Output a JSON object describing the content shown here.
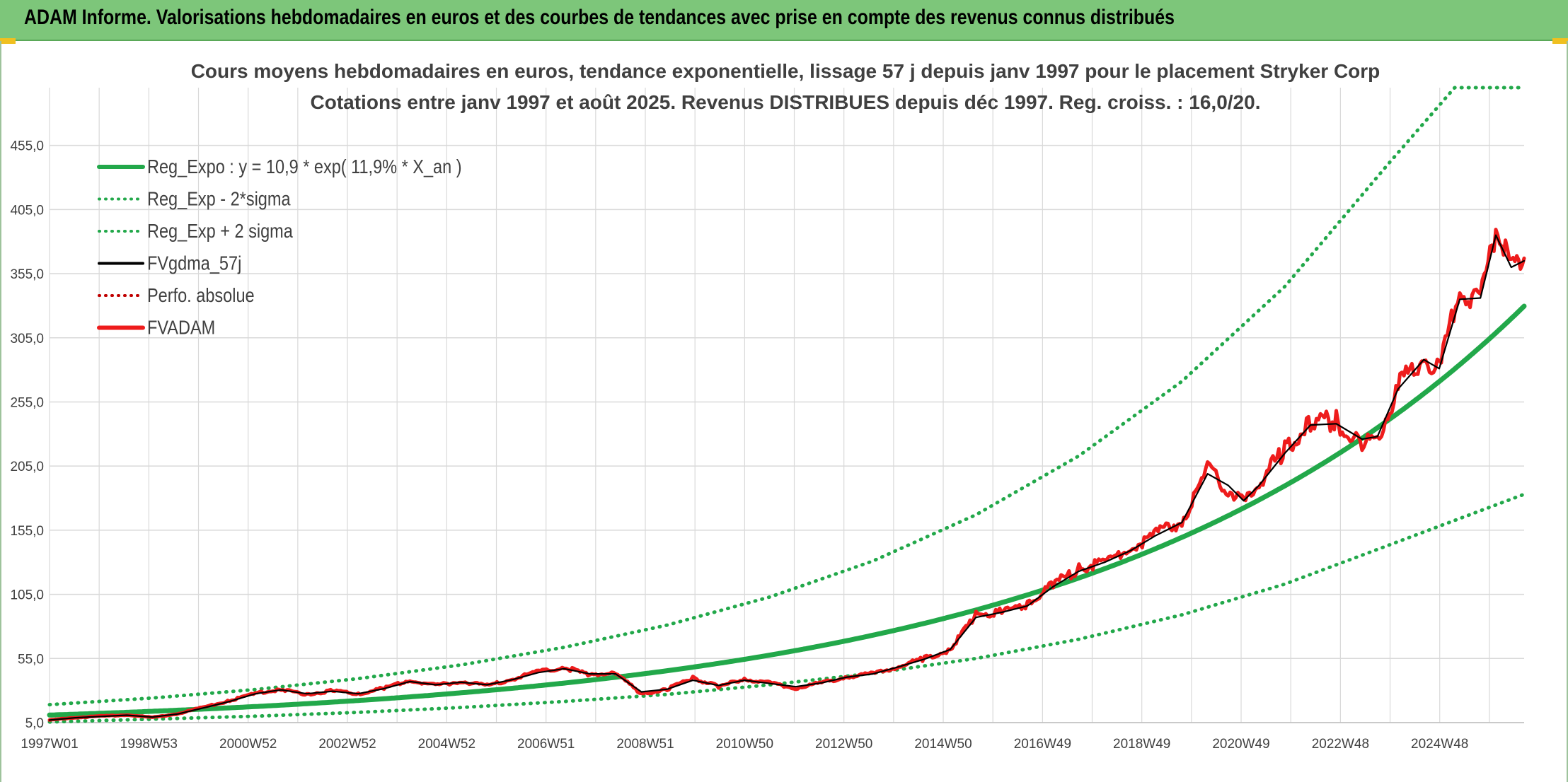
{
  "banner": {
    "title": "ADAM Informe. Valorisations hebdomadaires en euros et des courbes de tendances avec prise en compte des revenus connus distribués"
  },
  "colors": {
    "banner_bg": "#7dc67a",
    "reg_expo": "#22a84a",
    "sigma_bands": "#22a84a",
    "fvgdma": "#000000",
    "perfo": "#c00000",
    "fvadam": "#ee1c1c",
    "grid": "#d9d9d9"
  },
  "chart_data": {
    "type": "line",
    "title": "Cours moyens hebdomadaires en euros, tendance exponentielle, lissage 57 j depuis janv 1997 pour le placement Stryker Corp",
    "subtitle": "Cotations entre janv 1997 et août 2025. Revenus DISTRIBUES depuis déc 1997. Reg. croiss. : 16,0/20.",
    "x_tick_labels": [
      "1997W01",
      "1998W53",
      "2000W52",
      "2002W52",
      "2004W52",
      "2006W51",
      "2008W51",
      "2010W50",
      "2012W50",
      "2014W50",
      "2016W49",
      "2018W49",
      "2020W49",
      "2022W48",
      "2024W48"
    ],
    "x_range": [
      1997.0,
      2025.65
    ],
    "y_tick_labels": [
      "5,0",
      "55,0",
      "105,0",
      "155,0",
      "205,0",
      "255,0",
      "305,0",
      "355,0",
      "405,0",
      "455,0"
    ],
    "y_ticks": [
      5,
      55,
      105,
      155,
      205,
      255,
      305,
      355,
      405,
      455
    ],
    "ylim": [
      5,
      500
    ],
    "grid": true,
    "legend_position": "top-left",
    "legend": [
      {
        "key": "reg_expo",
        "label": "Reg_Expo : y = 10,9 * exp( 11,9% *  X_an )",
        "style": "solid-thick"
      },
      {
        "key": "reg_minus",
        "label": "Reg_Exp - 2*sigma",
        "style": "dotted"
      },
      {
        "key": "reg_plus",
        "label": "Reg_Exp + 2 sigma",
        "style": "dotted"
      },
      {
        "key": "fvgdma",
        "label": "FVgdma_57j",
        "style": "solid"
      },
      {
        "key": "perfo",
        "label": "Perfo. absolue",
        "style": "dotted"
      },
      {
        "key": "fvadam",
        "label": "FVADAM",
        "style": "solid-thick"
      }
    ],
    "series": [
      {
        "name": "Reg_Expo : y = 10,9 * exp( 11,9% *  X_an )",
        "x": [
          1997,
          1999,
          2001,
          2003,
          2005,
          2007,
          2009,
          2011,
          2013,
          2015,
          2017,
          2019,
          2021,
          2023,
          2025.65
        ],
        "values": [
          10.9,
          13.9,
          17.7,
          22.5,
          28.7,
          36.5,
          46.5,
          59.2,
          75.4,
          96,
          122,
          156,
          198,
          252,
          325
        ]
      },
      {
        "name": "Reg_Exp + 2 sigma",
        "x": [
          1997,
          1999,
          2001,
          2003,
          2005,
          2007,
          2009,
          2011,
          2013,
          2015,
          2017,
          2019,
          2021,
          2023,
          2024.3,
          2025.65
        ],
        "values": [
          19,
          24.2,
          30.8,
          39.3,
          50,
          63.7,
          81,
          103,
          131,
          167,
          213,
          271,
          345,
          440,
          500,
          500
        ]
      },
      {
        "name": "Reg_Exp - 2*sigma",
        "x": [
          1997,
          1999,
          2001,
          2003,
          2005,
          2007,
          2009,
          2011,
          2013,
          2015,
          2017,
          2019,
          2021,
          2023,
          2025.65
        ],
        "values": [
          5.5,
          7.7,
          10,
          13,
          16.8,
          21.5,
          27,
          34.5,
          43.5,
          55,
          70,
          89,
          113,
          143,
          183
        ]
      },
      {
        "name": "FVADAM",
        "x": [
          1997.0,
          1997.5,
          1998.0,
          1998.5,
          1999.0,
          1999.5,
          2000.0,
          2000.5,
          2001.0,
          2001.5,
          2002.0,
          2002.5,
          2003.0,
          2003.5,
          2004.0,
          2004.5,
          2005.0,
          2005.5,
          2006.0,
          2006.5,
          2007.0,
          2007.5,
          2008.0,
          2008.5,
          2009.0,
          2009.5,
          2010.0,
          2010.5,
          2011.0,
          2011.5,
          2012.0,
          2012.5,
          2013.0,
          2013.5,
          2014.0,
          2014.5,
          2015.0,
          2015.5,
          2016.0,
          2016.5,
          2017.0,
          2017.5,
          2018.0,
          2018.5,
          2019.0,
          2019.5,
          2019.9,
          2020.2,
          2020.5,
          2021.0,
          2021.5,
          2022.0,
          2022.5,
          2022.8,
          2023.2,
          2023.7,
          2024.0,
          2024.4,
          2024.8,
          2025.1,
          2025.4,
          2025.65
        ],
        "values": [
          7,
          9,
          10,
          11,
          9,
          12,
          17,
          22,
          28,
          31,
          27,
          30,
          27,
          32,
          38,
          34,
          37,
          34,
          39,
          45,
          48,
          42,
          44,
          27,
          31,
          40,
          33,
          39,
          36,
          32,
          36,
          41,
          43,
          49,
          55,
          62,
          89,
          92,
          97,
          113,
          125,
          131,
          140,
          152,
          162,
          202,
          188,
          175,
          192,
          218,
          240,
          240,
          223,
          226,
          268,
          290,
          279,
          342,
          331,
          393,
          355,
          367
        ]
      },
      {
        "name": "FVgdma_57j",
        "x": [
          1997.0,
          1997.5,
          1998.0,
          1998.5,
          1999.0,
          1999.5,
          2000.0,
          2000.5,
          2001.0,
          2001.5,
          2002.0,
          2002.5,
          2003.0,
          2003.5,
          2004.0,
          2004.5,
          2005.0,
          2005.5,
          2006.0,
          2006.5,
          2007.0,
          2007.5,
          2008.0,
          2008.5,
          2009.0,
          2009.5,
          2010.0,
          2010.5,
          2011.0,
          2011.5,
          2012.0,
          2012.5,
          2013.0,
          2013.5,
          2014.0,
          2014.5,
          2015.0,
          2015.5,
          2016.0,
          2016.5,
          2017.0,
          2017.5,
          2018.0,
          2018.5,
          2019.0,
          2019.5,
          2019.9,
          2020.2,
          2020.5,
          2021.0,
          2021.5,
          2022.0,
          2022.5,
          2022.8,
          2023.2,
          2023.7,
          2024.0,
          2024.4,
          2024.8,
          2025.1,
          2025.4,
          2025.65
        ],
        "values": [
          7,
          8.8,
          9.8,
          10.8,
          9.3,
          11.8,
          16.5,
          21.5,
          27.5,
          30.5,
          27.5,
          29.5,
          27.5,
          31.5,
          37,
          34.5,
          36.5,
          34.5,
          38.5,
          44,
          47,
          43,
          43,
          29,
          31,
          38,
          34,
          38,
          35.5,
          33,
          36,
          40.5,
          43,
          48.5,
          54.5,
          62,
          87,
          91,
          96,
          111,
          123,
          130,
          139,
          151,
          161,
          199,
          190,
          178,
          190,
          215,
          237,
          238,
          226,
          228,
          265,
          288,
          281,
          335,
          336,
          385,
          360,
          365
        ]
      }
    ]
  }
}
